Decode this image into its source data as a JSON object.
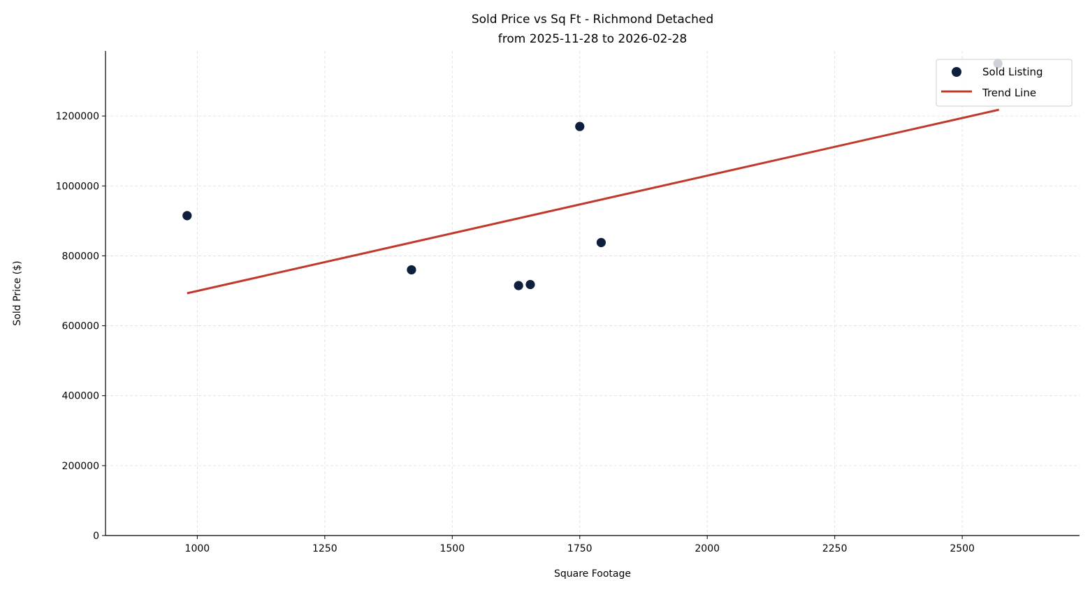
{
  "chart_data": {
    "type": "scatter",
    "title": "Sold Price vs Sq Ft - Richmond Detached",
    "subtitle": "from 2025-11-28 to 2026-02-28",
    "xlabel": "Square Footage",
    "ylabel": "Sold Price ($)",
    "xlim": [
      820,
      2730
    ],
    "ylim": [
      0,
      1386000
    ],
    "xticks": [
      1000,
      1250,
      1500,
      1750,
      2000,
      2250,
      2500
    ],
    "yticks": [
      0,
      200000,
      400000,
      600000,
      800000,
      1000000,
      1200000
    ],
    "grid": true,
    "legend_placement": "top-right",
    "series": [
      {
        "name": "Sold Listing",
        "kind": "scatter",
        "color": "#0d1f3c",
        "points": [
          [
            980,
            915000
          ],
          [
            1420,
            760000
          ],
          [
            1630,
            715000
          ],
          [
            1653,
            718000
          ],
          [
            1750,
            1170000
          ],
          [
            1792,
            838000
          ],
          [
            2570,
            1350000
          ]
        ]
      },
      {
        "name": "Trend Line",
        "kind": "line",
        "color": "#c0392b",
        "points": [
          [
            980,
            693000
          ],
          [
            2572,
            1218000
          ]
        ]
      }
    ]
  }
}
